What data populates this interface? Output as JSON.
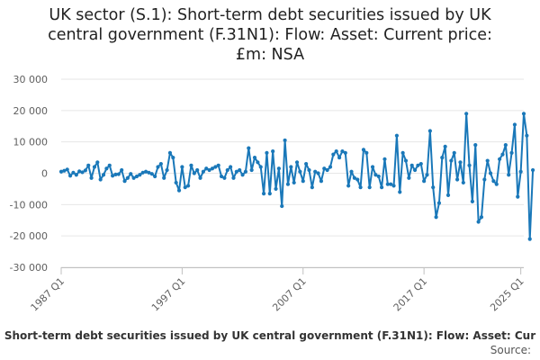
{
  "chart_data": {
    "type": "line",
    "title_lines": [
      "UK sector (S.1): Short-term debt securities issued by UK",
      "central government (F.31N1): Flow: Asset: Current price:",
      "£m: NSA"
    ],
    "legend_text": "Short-term debt securities issued by UK central government (F.31N1): Flow: Asset: Cur",
    "source_label": "Source:",
    "line_color": "#1a78b9",
    "grid_color": "#e6e6e6",
    "ylim": [
      -30000,
      30000
    ],
    "y_ticks": [
      {
        "value": 30000,
        "label": "30 000"
      },
      {
        "value": 20000,
        "label": "20 000"
      },
      {
        "value": 10000,
        "label": "10 000"
      },
      {
        "value": 0,
        "label": "0"
      },
      {
        "value": -10000,
        "label": "-10 000"
      },
      {
        "value": -20000,
        "label": "-20 000"
      },
      {
        "value": -30000,
        "label": "-30 000"
      }
    ],
    "x_ticks": [
      {
        "index": 0,
        "label": "1987 Q1"
      },
      {
        "index": 40,
        "label": "1997 Q1"
      },
      {
        "index": 80,
        "label": "2007 Q1"
      },
      {
        "index": 120,
        "label": "2017 Q1"
      },
      {
        "index": 152,
        "label": "2025 Q1"
      }
    ],
    "start_label": "1987 Q1",
    "values": [
      500,
      800,
      1200,
      -800,
      200,
      -500,
      600,
      300,
      900,
      2500,
      -1500,
      2000,
      3500,
      -2000,
      -500,
      1500,
      2500,
      -800,
      -400,
      -300,
      1000,
      -2500,
      -1500,
      -200,
      -1500,
      -1000,
      -500,
      200,
      500,
      200,
      -200,
      -1000,
      2000,
      3000,
      -1500,
      1000,
      6500,
      5000,
      -3000,
      -5500,
      2000,
      -4500,
      -4000,
      2500,
      0,
      1000,
      -1500,
      500,
      1500,
      1000,
      1500,
      2000,
      2500,
      -1000,
      -1500,
      1000,
      2000,
      -1500,
      500,
      1000,
      -500,
      500,
      8000,
      1000,
      5000,
      3500,
      2000,
      -6500,
      6500,
      -6500,
      7000,
      -5000,
      1500,
      -10500,
      10500,
      -3500,
      2000,
      -3000,
      3500,
      500,
      -2500,
      3000,
      1000,
      -4500,
      500,
      0,
      -2500,
      1500,
      1000,
      2000,
      6000,
      7000,
      5000,
      7000,
      6500,
      -4000,
      500,
      -1500,
      -2000,
      -4500,
      7500,
      6500,
      -4500,
      2000,
      -500,
      -1000,
      -4500,
      4500,
      -3500,
      -3500,
      -4000,
      12000,
      -6000,
      6500,
      4000,
      -1500,
      2500,
      1000,
      2500,
      3000,
      -2500,
      -500,
      13500,
      -4500,
      -14000,
      -9500,
      5000,
      8500,
      -7000,
      4000,
      6500,
      -2000,
      3500,
      -3000,
      19000,
      2500,
      -9000,
      9000,
      -15500,
      -14000,
      -2000,
      4000,
      0,
      -2500,
      -3500,
      4500,
      6000,
      9000,
      -500,
      6500,
      15500,
      -7500,
      500,
      19000,
      12000,
      -21000,
      1000
    ]
  }
}
